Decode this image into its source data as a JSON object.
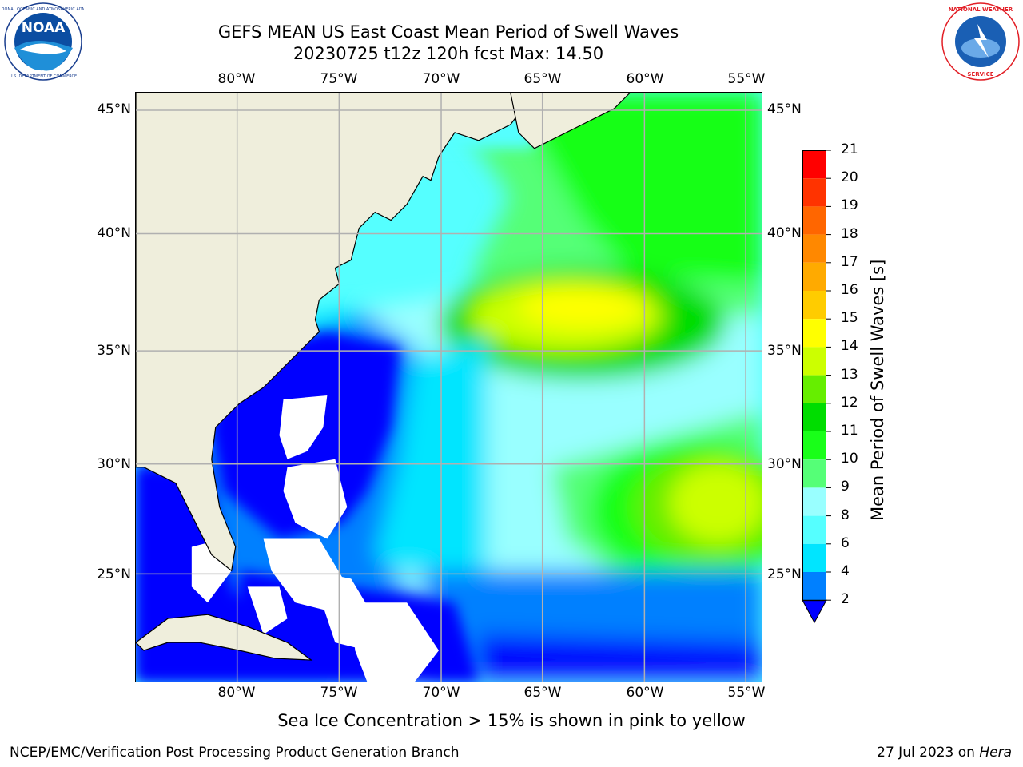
{
  "header": {
    "title_line1": "GEFS MEAN US East Coast Mean Period of Swell Waves",
    "title_line2": "20230725 t12z 120h fcst   Max: 14.50"
  },
  "logos": {
    "left": {
      "name": "noaa-logo",
      "text": "NOAA",
      "ring_text": "NATIONAL OCEANIC AND ATMOSPHERIC ADMINISTRATION · U.S. DEPARTMENT OF COMMERCE",
      "colors": [
        "#0b4da2",
        "#1f8fd8",
        "#ffffff"
      ]
    },
    "right": {
      "name": "nws-logo",
      "ring_text": "NATIONAL WEATHER SERVICE",
      "colors": [
        "#e21f26",
        "#1a5fb4",
        "#ffffff"
      ]
    }
  },
  "map": {
    "type": "filled-contour-map",
    "region": "US East Coast / Western North Atlantic",
    "projection": "cylindrical",
    "lon_range": [
      -85,
      -54
    ],
    "lat_range": [
      20.5,
      46
    ],
    "longitude_ticks": [
      "80°W",
      "75°W",
      "70°W",
      "65°W",
      "60°W",
      "55°W"
    ],
    "latitude_ticks": [
      "45°N",
      "40°N",
      "35°N",
      "30°N",
      "25°N"
    ],
    "grid": true,
    "land_color": "#efeedc",
    "no_data_color": "#ffffff",
    "field_regions": [
      {
        "desc": "Sargasso swell max",
        "lon": [
          -60,
          -54
        ],
        "lat": [
          26,
          30
        ],
        "value": 13.5
      },
      {
        "desc": "Northern swell max",
        "lon": [
          -66,
          -58
        ],
        "lat": [
          35.5,
          38
        ],
        "value": 14.5
      },
      {
        "desc": "Nearshore / Bahamas",
        "value": 3
      }
    ]
  },
  "colorbar": {
    "label": "Mean Period of Swell Waves [s]",
    "ticks": [
      "2",
      "4",
      "6",
      "8",
      "9",
      "10",
      "11",
      "12",
      "13",
      "14",
      "15",
      "16",
      "17",
      "18",
      "19",
      "20",
      "21"
    ],
    "colors": [
      "#0000ff",
      "#0080ff",
      "#00e5ff",
      "#55ffff",
      "#99ffff",
      "#55ff77",
      "#19ff19",
      "#00dd00",
      "#66ee00",
      "#ccff00",
      "#ffff00",
      "#ffcc00",
      "#ffaa00",
      "#ff8800",
      "#ff6600",
      "#ff3300",
      "#ff0000"
    ],
    "extend": "min"
  },
  "footer": {
    "note": "Sea Ice Concentration > 15% is shown in pink to yellow",
    "left": "NCEP/EMC/Verification Post Processing Product Generation Branch",
    "right_date": "27 Jul 2023 on",
    "right_host": "Hera"
  }
}
